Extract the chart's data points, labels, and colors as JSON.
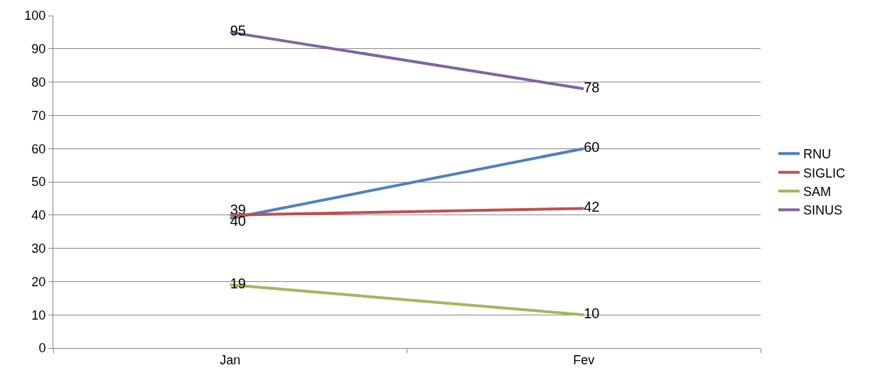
{
  "chart_data": {
    "type": "line",
    "categories": [
      "Jan",
      "Fev"
    ],
    "series": [
      {
        "name": "RNU",
        "color": "#4f81bd",
        "values": [
          39,
          60
        ]
      },
      {
        "name": "SIGLIC",
        "color": "#c0504d",
        "values": [
          40,
          42
        ]
      },
      {
        "name": "SAM",
        "color": "#9bbb59",
        "values": [
          19,
          10
        ]
      },
      {
        "name": "SINUS",
        "color": "#8064a2",
        "values": [
          95,
          78
        ]
      }
    ],
    "ylim": [
      0,
      100
    ],
    "yticks": [
      0,
      10,
      20,
      30,
      40,
      50,
      60,
      70,
      80,
      90,
      100
    ],
    "grid": "y",
    "legend": "right",
    "marker": "none",
    "line_style": "solid",
    "data_labels": true
  }
}
